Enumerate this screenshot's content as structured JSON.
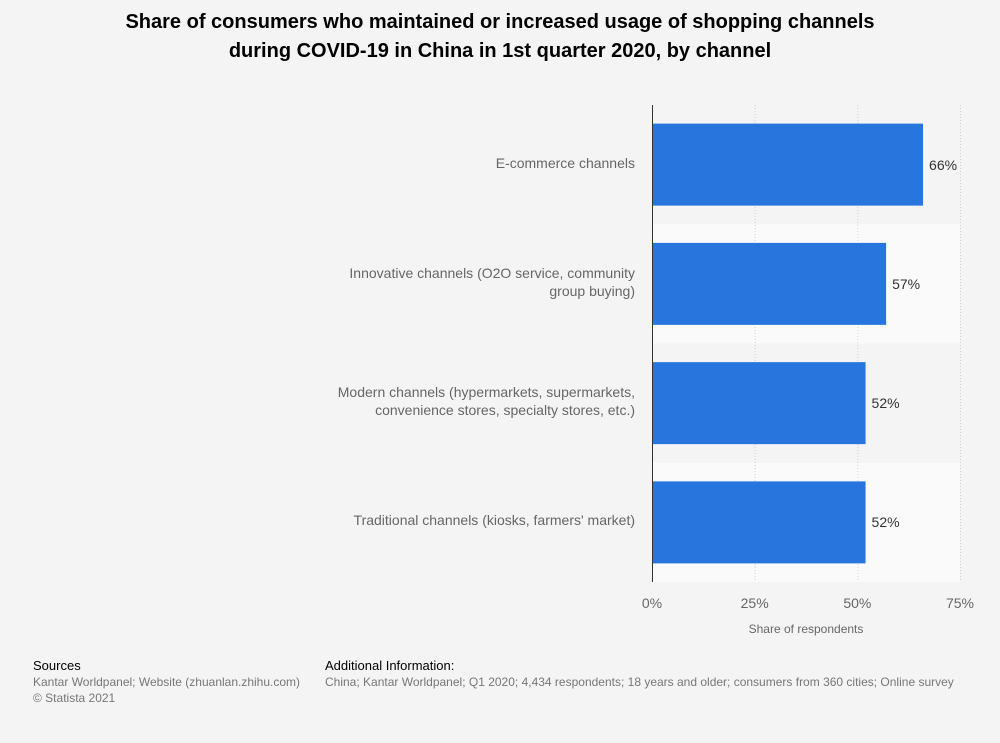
{
  "title": {
    "line1": "Share of consumers who maintained or increased usage of shopping channels",
    "line2": "during COVID-19 in China in 1st quarter 2020, by channel"
  },
  "chart_data": {
    "type": "bar",
    "orientation": "horizontal",
    "title": "Share of consumers who maintained or increased usage of shopping channels during COVID-19 in China in 1st quarter 2020, by channel",
    "categories": [
      [
        "E-commerce channels"
      ],
      [
        "Innovative channels (O2O service, community",
        "group buying)"
      ],
      [
        "Modern channels (hypermarkets, supermarkets,",
        "convenience stores, specialty stores, etc.)"
      ],
      [
        "Traditional channels (kiosks, farmers' market)"
      ]
    ],
    "values": [
      66,
      57,
      52,
      52
    ],
    "value_labels": [
      "66%",
      "57%",
      "52%",
      "52%"
    ],
    "xlim": [
      0,
      75
    ],
    "ticks": [
      0,
      25,
      50,
      75
    ],
    "tick_labels": [
      "0%",
      "25%",
      "50%",
      "75%"
    ],
    "xlabel": "Share of respondents",
    "ylabel": "",
    "bar_color": "#2876dd",
    "grid": true
  },
  "footer": {
    "sources_heading": "Sources",
    "sources_line1": "Kantar Worldpanel; Website (zhuanlan.zhihu.com)",
    "sources_line2": "© Statista 2021",
    "info_heading": "Additional Information:",
    "info_text": "China; Kantar Worldpanel; Q1 2020; 4,434 respondents; 18 years and older; consumers from 360 cities; Online survey"
  }
}
